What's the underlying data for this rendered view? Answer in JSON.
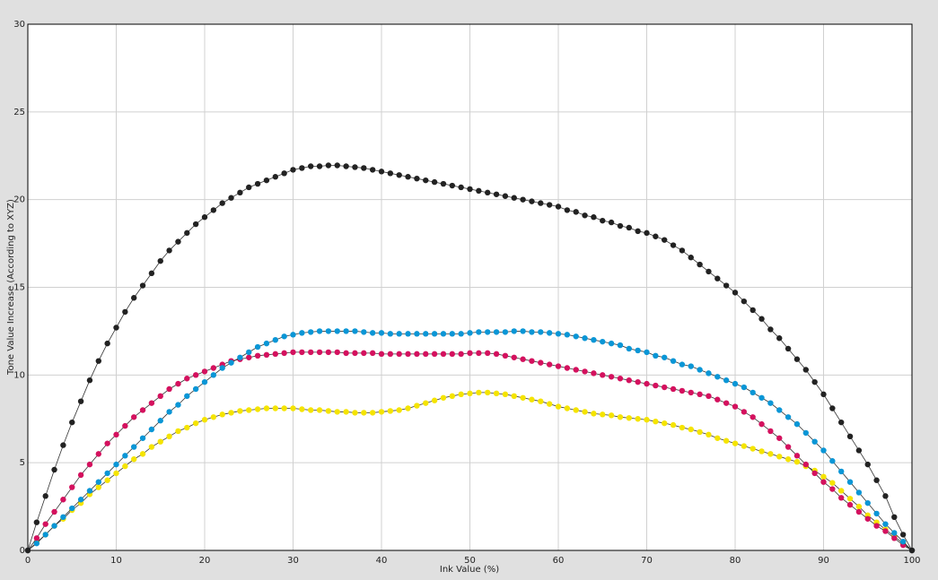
{
  "chart_data": {
    "type": "line",
    "x_label": "Ink Value (%)",
    "y_label": "Tone Value Increase (According to XYZ)",
    "x": [
      0,
      1,
      2,
      3,
      4,
      5,
      6,
      7,
      8,
      9,
      10,
      11,
      12,
      13,
      14,
      15,
      16,
      17,
      18,
      19,
      20,
      21,
      22,
      23,
      24,
      25,
      26,
      27,
      28,
      29,
      30,
      31,
      32,
      33,
      34,
      35,
      36,
      37,
      38,
      39,
      40,
      41,
      42,
      43,
      44,
      45,
      46,
      47,
      48,
      49,
      50,
      51,
      52,
      53,
      54,
      55,
      56,
      57,
      58,
      59,
      60,
      61,
      62,
      63,
      64,
      65,
      66,
      67,
      68,
      69,
      70,
      71,
      72,
      73,
      74,
      75,
      76,
      77,
      78,
      79,
      80,
      81,
      82,
      83,
      84,
      85,
      86,
      87,
      88,
      89,
      90,
      91,
      92,
      93,
      94,
      95,
      96,
      97,
      98,
      99,
      100
    ],
    "series": [
      {
        "color": "#f5e400",
        "values": [
          0,
          0.45,
          0.9,
          1.4,
          1.8,
          2.3,
          2.7,
          3.2,
          3.6,
          4.0,
          4.4,
          4.8,
          5.2,
          5.5,
          5.9,
          6.2,
          6.5,
          6.8,
          7.0,
          7.25,
          7.45,
          7.6,
          7.75,
          7.85,
          7.95,
          8.0,
          8.05,
          8.1,
          8.1,
          8.1,
          8.1,
          8.05,
          8.0,
          8.0,
          7.95,
          7.9,
          7.9,
          7.85,
          7.85,
          7.85,
          7.9,
          7.95,
          8.0,
          8.1,
          8.25,
          8.4,
          8.55,
          8.7,
          8.8,
          8.9,
          8.95,
          9.0,
          9.0,
          8.95,
          8.9,
          8.8,
          8.7,
          8.6,
          8.5,
          8.35,
          8.2,
          8.1,
          8.0,
          7.9,
          7.8,
          7.75,
          7.7,
          7.6,
          7.55,
          7.5,
          7.45,
          7.35,
          7.25,
          7.15,
          7.0,
          6.9,
          6.75,
          6.6,
          6.4,
          6.25,
          6.1,
          5.95,
          5.8,
          5.65,
          5.5,
          5.35,
          5.2,
          5.05,
          4.8,
          4.55,
          4.2,
          3.85,
          3.4,
          2.95,
          2.5,
          2.0,
          1.6,
          1.2,
          0.8,
          0.4,
          0
        ]
      },
      {
        "color": "#d4115e",
        "values": [
          0,
          0.7,
          1.5,
          2.2,
          2.9,
          3.6,
          4.3,
          4.9,
          5.5,
          6.1,
          6.6,
          7.1,
          7.6,
          8.0,
          8.4,
          8.8,
          9.2,
          9.5,
          9.8,
          10.0,
          10.2,
          10.4,
          10.6,
          10.8,
          10.9,
          11.0,
          11.1,
          11.15,
          11.2,
          11.25,
          11.3,
          11.3,
          11.3,
          11.3,
          11.3,
          11.3,
          11.25,
          11.25,
          11.25,
          11.25,
          11.2,
          11.2,
          11.2,
          11.2,
          11.2,
          11.2,
          11.2,
          11.2,
          11.2,
          11.2,
          11.25,
          11.25,
          11.25,
          11.2,
          11.1,
          11.0,
          10.9,
          10.8,
          10.7,
          10.6,
          10.5,
          10.4,
          10.3,
          10.2,
          10.1,
          10.0,
          9.9,
          9.8,
          9.7,
          9.6,
          9.5,
          9.4,
          9.3,
          9.2,
          9.1,
          9.0,
          8.9,
          8.8,
          8.6,
          8.4,
          8.2,
          7.9,
          7.6,
          7.2,
          6.8,
          6.4,
          5.9,
          5.4,
          4.9,
          4.4,
          3.9,
          3.5,
          3.0,
          2.6,
          2.2,
          1.8,
          1.4,
          1.1,
          0.7,
          0.3,
          0
        ]
      },
      {
        "color": "#0a96d6",
        "values": [
          0,
          0.4,
          0.9,
          1.4,
          1.9,
          2.4,
          2.9,
          3.4,
          3.9,
          4.4,
          4.9,
          5.4,
          5.9,
          6.4,
          6.9,
          7.4,
          7.9,
          8.3,
          8.8,
          9.2,
          9.6,
          10.0,
          10.4,
          10.7,
          11.0,
          11.3,
          11.6,
          11.8,
          12.0,
          12.2,
          12.3,
          12.4,
          12.45,
          12.5,
          12.5,
          12.5,
          12.5,
          12.5,
          12.45,
          12.4,
          12.4,
          12.35,
          12.35,
          12.35,
          12.35,
          12.35,
          12.35,
          12.35,
          12.35,
          12.35,
          12.4,
          12.45,
          12.45,
          12.45,
          12.45,
          12.5,
          12.5,
          12.45,
          12.45,
          12.4,
          12.35,
          12.3,
          12.2,
          12.1,
          12.0,
          11.9,
          11.8,
          11.7,
          11.5,
          11.4,
          11.3,
          11.1,
          11.0,
          10.8,
          10.6,
          10.5,
          10.3,
          10.1,
          9.9,
          9.7,
          9.5,
          9.3,
          9.0,
          8.7,
          8.4,
          8.0,
          7.6,
          7.2,
          6.7,
          6.2,
          5.7,
          5.1,
          4.5,
          3.9,
          3.3,
          2.7,
          2.1,
          1.5,
          1.0,
          0.5,
          0
        ]
      },
      {
        "color": "#222222",
        "values": [
          0,
          1.6,
          3.1,
          4.6,
          6.0,
          7.3,
          8.5,
          9.7,
          10.8,
          11.8,
          12.7,
          13.6,
          14.4,
          15.1,
          15.8,
          16.5,
          17.1,
          17.6,
          18.1,
          18.6,
          19.0,
          19.4,
          19.8,
          20.1,
          20.4,
          20.7,
          20.9,
          21.1,
          21.3,
          21.5,
          21.7,
          21.8,
          21.9,
          21.9,
          21.95,
          21.95,
          21.9,
          21.85,
          21.8,
          21.7,
          21.6,
          21.5,
          21.4,
          21.3,
          21.2,
          21.1,
          21.0,
          20.9,
          20.8,
          20.7,
          20.6,
          20.5,
          20.4,
          20.3,
          20.2,
          20.1,
          20.0,
          19.9,
          19.8,
          19.7,
          19.6,
          19.4,
          19.3,
          19.1,
          19.0,
          18.8,
          18.7,
          18.5,
          18.4,
          18.2,
          18.1,
          17.9,
          17.7,
          17.4,
          17.1,
          16.7,
          16.3,
          15.9,
          15.5,
          15.1,
          14.7,
          14.2,
          13.7,
          13.2,
          12.6,
          12.1,
          11.5,
          10.9,
          10.3,
          9.6,
          8.9,
          8.1,
          7.3,
          6.5,
          5.7,
          4.9,
          4.0,
          3.1,
          1.9,
          0.9,
          0
        ]
      }
    ],
    "xlim": [
      0,
      100
    ],
    "xticks": [
      0,
      10,
      20,
      30,
      40,
      50,
      60,
      70,
      80,
      90,
      100
    ],
    "ylim": [
      0,
      30
    ],
    "yticks": [
      0,
      5,
      10,
      15,
      20,
      25,
      30
    ],
    "grid": true
  }
}
